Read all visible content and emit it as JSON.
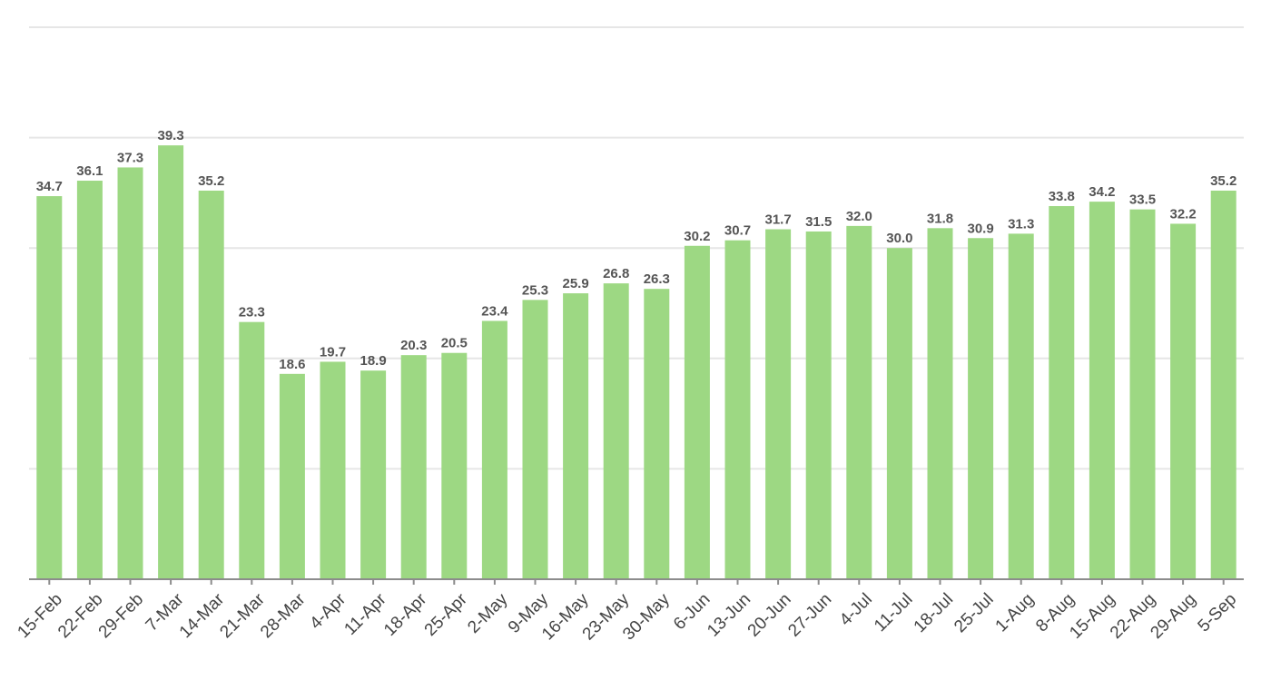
{
  "chart_data": {
    "type": "bar",
    "categories": [
      "15-Feb",
      "22-Feb",
      "29-Feb",
      "7-Mar",
      "14-Mar",
      "21-Mar",
      "28-Mar",
      "4-Apr",
      "11-Apr",
      "18-Apr",
      "25-Apr",
      "2-May",
      "9-May",
      "16-May",
      "23-May",
      "30-May",
      "6-Jun",
      "13-Jun",
      "20-Jun",
      "27-Jun",
      "4-Jul",
      "11-Jul",
      "18-Jul",
      "25-Jul",
      "1-Aug",
      "8-Aug",
      "15-Aug",
      "22-Aug",
      "29-Aug",
      "5-Sep"
    ],
    "values": [
      34.7,
      36.1,
      37.3,
      39.3,
      35.2,
      23.3,
      18.6,
      19.7,
      18.9,
      20.3,
      20.5,
      23.4,
      25.3,
      25.9,
      26.8,
      26.3,
      30.2,
      30.7,
      31.7,
      31.5,
      32.0,
      30.0,
      31.8,
      30.9,
      31.3,
      33.8,
      34.2,
      33.5,
      32.2,
      35.2
    ],
    "value_labels": [
      "34.7",
      "36.1",
      "37.3",
      "39.3",
      "35.2",
      "23.3",
      "18.6",
      "19.7",
      "18.9",
      "20.3",
      "20.5",
      "23.4",
      "25.3",
      "25.9",
      "26.8",
      "26.3",
      "30.2",
      "30.7",
      "31.7",
      "31.5",
      "32.0",
      "30.0",
      "31.8",
      "30.9",
      "31.3",
      "33.8",
      "34.2",
      "33.5",
      "32.2",
      "35.2"
    ],
    "title": "",
    "xlabel": "",
    "ylabel": "",
    "ylim": [
      0,
      50
    ],
    "ytick_values": [
      0,
      10,
      20,
      30,
      40,
      50
    ],
    "y_tick_labels_shown": false,
    "grid": "horizontal",
    "legend": "none",
    "bar_color": "#9dd883",
    "grid_color": "#e6e6e6",
    "axis_color": "#8c8c8c",
    "label_color": "#555555"
  }
}
